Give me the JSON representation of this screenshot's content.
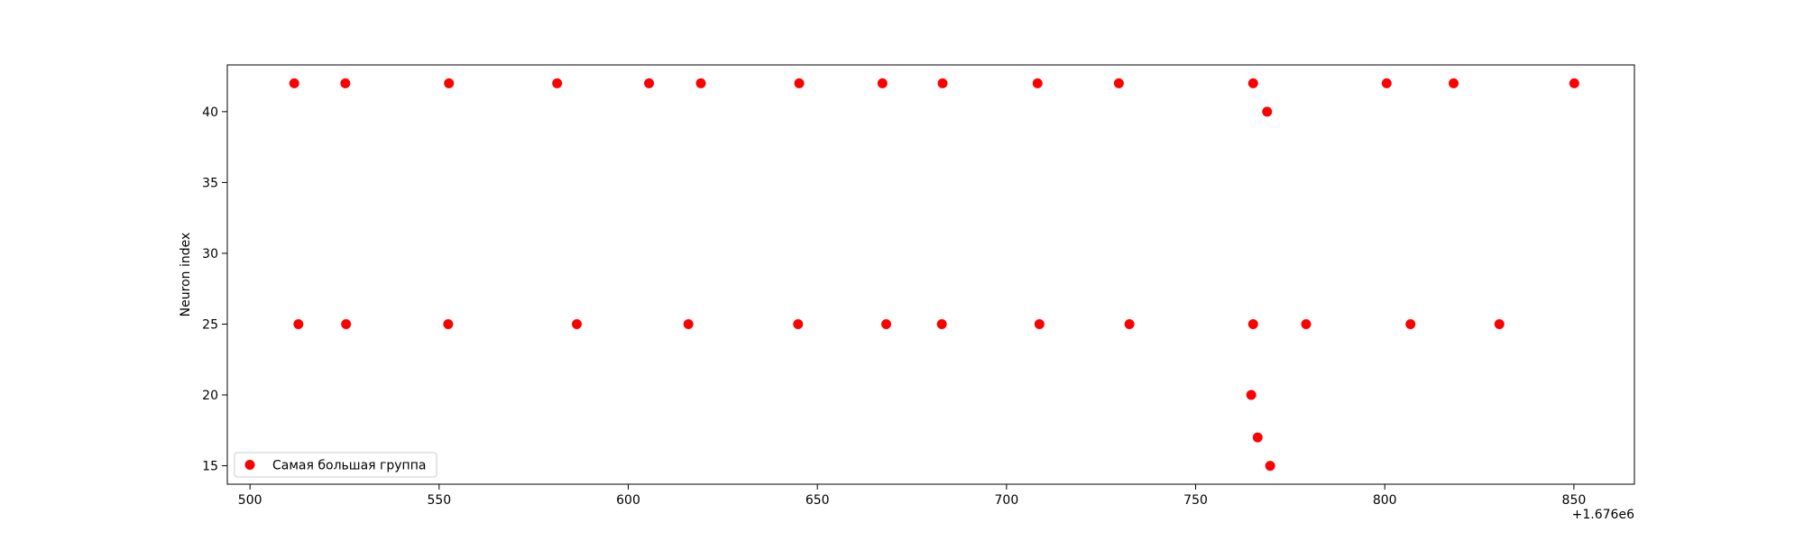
{
  "chart_data": {
    "type": "scatter",
    "title": "",
    "xlabel": "",
    "ylabel": "Neuron index",
    "x_offset_label": "+1.676e6",
    "xlim": [
      494,
      866
    ],
    "ylim": [
      13.7,
      43.3
    ],
    "x_ticks": [
      500,
      550,
      600,
      650,
      700,
      750,
      800,
      850
    ],
    "y_ticks": [
      15,
      20,
      25,
      30,
      35,
      40
    ],
    "grid": false,
    "legend": {
      "position": "lower-left"
    },
    "series": [
      {
        "name": "Самая большая группа",
        "color": "#ff0000",
        "marker": "circle",
        "points": [
          {
            "x": 511.7,
            "y": 42
          },
          {
            "x": 525.2,
            "y": 42
          },
          {
            "x": 552.6,
            "y": 42
          },
          {
            "x": 581.2,
            "y": 42
          },
          {
            "x": 605.5,
            "y": 42
          },
          {
            "x": 619.2,
            "y": 42
          },
          {
            "x": 645.2,
            "y": 42
          },
          {
            "x": 667.2,
            "y": 42
          },
          {
            "x": 683.1,
            "y": 42
          },
          {
            "x": 708.2,
            "y": 42
          },
          {
            "x": 729.7,
            "y": 42
          },
          {
            "x": 765.2,
            "y": 42
          },
          {
            "x": 800.5,
            "y": 42
          },
          {
            "x": 818.2,
            "y": 42
          },
          {
            "x": 850.1,
            "y": 42
          },
          {
            "x": 768.9,
            "y": 40
          },
          {
            "x": 512.8,
            "y": 25
          },
          {
            "x": 525.4,
            "y": 25
          },
          {
            "x": 552.4,
            "y": 25
          },
          {
            "x": 586.4,
            "y": 25
          },
          {
            "x": 615.9,
            "y": 25
          },
          {
            "x": 644.9,
            "y": 25
          },
          {
            "x": 668.2,
            "y": 25
          },
          {
            "x": 682.9,
            "y": 25
          },
          {
            "x": 708.7,
            "y": 25
          },
          {
            "x": 732.5,
            "y": 25
          },
          {
            "x": 765.2,
            "y": 25
          },
          {
            "x": 779.2,
            "y": 25
          },
          {
            "x": 806.8,
            "y": 25
          },
          {
            "x": 830.3,
            "y": 25
          },
          {
            "x": 764.7,
            "y": 20
          },
          {
            "x": 766.4,
            "y": 17
          },
          {
            "x": 769.7,
            "y": 15
          }
        ]
      }
    ]
  }
}
